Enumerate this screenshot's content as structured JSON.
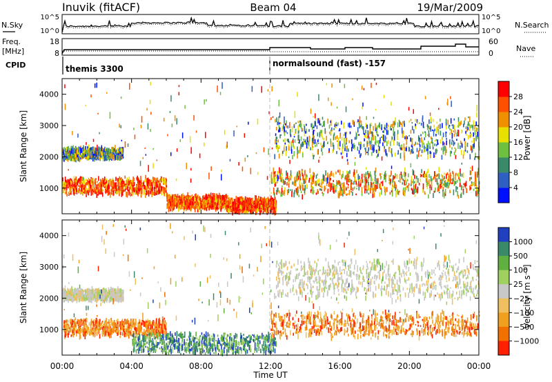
{
  "header": {
    "station": "Inuvik (fitACF)",
    "beam": "Beam 04",
    "date": "19/Mar/2009"
  },
  "aux_panels": {
    "nsky_label": "N.Sky",
    "nsearch_label": "N.Search",
    "noise_ticks": [
      "10^5",
      "10^0"
    ],
    "freq_label_line1": "Freq.",
    "freq_label_line2": "[MHz]",
    "freq_ticks": [
      "18",
      "8"
    ],
    "nave_label": "Nave",
    "nave_ticks": [
      "60",
      "0"
    ],
    "cpid_label": "CPID",
    "cpid_segments": [
      {
        "label": "themis 3300",
        "start_hour": 0,
        "end_hour": 12
      },
      {
        "label": "normalsound (fast) -157",
        "start_hour": 12,
        "end_hour": 24
      }
    ]
  },
  "axes": {
    "xlabel": "Time UT",
    "x_ticks": [
      "00:00",
      "04:00",
      "08:00",
      "12:00",
      "16:00",
      "20:00",
      "00:00"
    ],
    "ylabel": "Slant Range [km]",
    "y_ticks": [
      "1000",
      "2000",
      "3000",
      "4000"
    ]
  },
  "chart_data": [
    {
      "type": "heatmap",
      "panel": "power",
      "xlabel": "Time UT",
      "ylabel": "Slant Range [km]",
      "xlim_hours": [
        0,
        24
      ],
      "ylim": [
        180,
        4500
      ],
      "colorbar": {
        "label": "Power [dB]",
        "ticks": [
          "4",
          "8",
          "12",
          "16",
          "20",
          "24",
          "28"
        ],
        "colors": [
          "#0010ff",
          "#2f5fc0",
          "#3a8a6a",
          "#6fbf40",
          "#e8e000",
          "#f09000",
          "#ff5000",
          "#ff0000"
        ]
      },
      "scatter_regions": [
        {
          "t_start": 0.0,
          "t_end": 6.0,
          "r_min": 750,
          "r_max": 1350,
          "level": "high"
        },
        {
          "t_start": 6.0,
          "t_end": 9.5,
          "r_min": 300,
          "r_max": 800,
          "level": "high"
        },
        {
          "t_start": 9.5,
          "t_end": 12.3,
          "r_min": 200,
          "r_max": 700,
          "level": "high"
        },
        {
          "t_start": 12.0,
          "t_end": 24.0,
          "r_min": 700,
          "r_max": 1600,
          "level": "medium-high"
        },
        {
          "t_start": 0.0,
          "t_end": 3.5,
          "r_min": 1900,
          "r_max": 2300,
          "level": "medium"
        },
        {
          "t_start": 12.2,
          "t_end": 24.0,
          "r_min": 1900,
          "r_max": 3300,
          "level": "medium"
        }
      ]
    },
    {
      "type": "heatmap",
      "panel": "velocity",
      "xlabel": "Time UT",
      "ylabel": "Slant Range [km]",
      "xlim_hours": [
        0,
        24
      ],
      "ylim": [
        180,
        4500
      ],
      "colorbar": {
        "label": "Velocity [m s⁻¹]",
        "ticks": [
          "1000",
          "500",
          "100",
          "25",
          "−25",
          "−100",
          "−500",
          "−1000"
        ],
        "colors": [
          "#2040c0",
          "#3a8a6a",
          "#5fb040",
          "#a0d060",
          "#c8c8c8",
          "#f0c060",
          "#f0a020",
          "#f07000",
          "#ff2000"
        ]
      },
      "scatter_regions": [
        {
          "t_start": 0.0,
          "t_end": 6.0,
          "r_min": 750,
          "r_max": 1350,
          "level": "-500"
        },
        {
          "t_start": 4.0,
          "t_end": 12.3,
          "r_min": 200,
          "r_max": 900,
          "level": "100"
        },
        {
          "t_start": 12.0,
          "t_end": 24.0,
          "r_min": 700,
          "r_max": 1600,
          "level": "-500"
        },
        {
          "t_start": 0.0,
          "t_end": 3.5,
          "r_min": 1900,
          "r_max": 2300,
          "level": "25"
        },
        {
          "t_start": 12.2,
          "t_end": 24.0,
          "r_min": 1900,
          "r_max": 3300,
          "level": "25"
        }
      ]
    }
  ]
}
